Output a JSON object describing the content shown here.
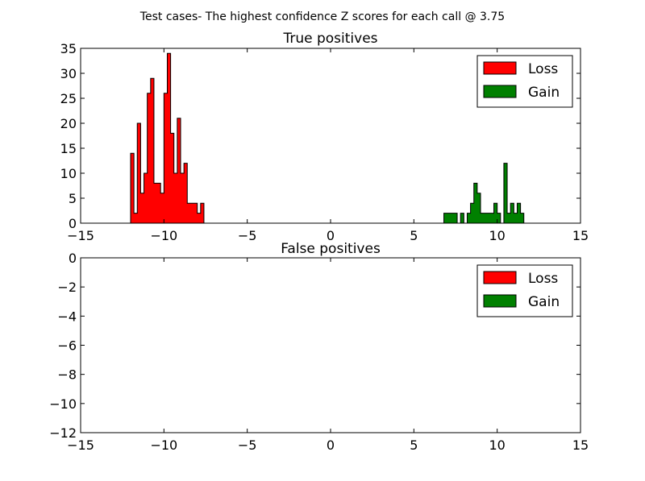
{
  "figure": {
    "suptitle": "Test cases- The highest confidence Z scores for each call @ 3.75"
  },
  "colors": {
    "loss": "#ff0000",
    "gain": "#008000",
    "axis": "#000000",
    "background": "#ffffff"
  },
  "chart_data": [
    {
      "type": "bar",
      "subtype": "step-filled-histogram",
      "title": "True positives",
      "xlim": [
        -15,
        15
      ],
      "ylim": [
        0,
        35
      ],
      "xticks": [
        -15,
        -10,
        -5,
        0,
        5,
        10,
        15
      ],
      "yticks": [
        0,
        5,
        10,
        15,
        20,
        25,
        30,
        35
      ],
      "xtick_labels": [
        "−15",
        "−10",
        "−5",
        "0",
        "5",
        "10",
        "15"
      ],
      "ytick_labels": [
        "0",
        "5",
        "10",
        "15",
        "20",
        "25",
        "30",
        "35"
      ],
      "grid": false,
      "legend_position": "top-right",
      "bin_width": 0.2,
      "series": [
        {
          "name": "Loss",
          "color": "#ff0000",
          "bin_start": -12.0,
          "counts": [
            14,
            2,
            20,
            6,
            10,
            26,
            29,
            8,
            8,
            6,
            26,
            34,
            18,
            10,
            21,
            10,
            12,
            4,
            4,
            4,
            2,
            4,
            0,
            0,
            0,
            0,
            0,
            0,
            0,
            0,
            0,
            0,
            0,
            0,
            0,
            0,
            0,
            0,
            0,
            0,
            0,
            0,
            0,
            0,
            0,
            0,
            0,
            0,
            0,
            0,
            0,
            0,
            0,
            0,
            0,
            0,
            0,
            0,
            0,
            0,
            0,
            0,
            0,
            0,
            0,
            0,
            0,
            0,
            0,
            0,
            0,
            0,
            0,
            0,
            0,
            0,
            0,
            0,
            0,
            0,
            0,
            0,
            0,
            0,
            0,
            0,
            0,
            0,
            0,
            0,
            0,
            0,
            0,
            0,
            0,
            0,
            0,
            0,
            0,
            0,
            0,
            0,
            0,
            0,
            0,
            0,
            0,
            0,
            0,
            0,
            0,
            0,
            0,
            0,
            0,
            0,
            0,
            0,
            0,
            0
          ]
        },
        {
          "name": "Gain",
          "color": "#008000",
          "bin_start": -6.6,
          "counts": [
            0,
            0,
            0,
            0,
            0,
            0,
            0,
            0,
            0,
            0,
            0,
            0,
            0,
            0,
            0,
            0,
            0,
            0,
            0,
            0,
            0,
            0,
            0,
            0,
            0,
            0,
            0,
            0,
            0,
            0,
            0,
            0,
            0,
            0,
            0,
            0,
            0,
            0,
            0,
            0,
            0,
            0,
            0,
            0,
            0,
            0,
            0,
            0,
            0,
            0,
            0,
            0,
            0,
            0,
            0,
            0,
            0,
            0,
            0,
            0,
            0,
            0,
            0,
            0,
            0,
            0,
            0,
            2,
            2,
            2,
            2,
            0,
            2,
            0,
            2,
            4,
            8,
            6,
            2,
            2,
            2,
            2,
            4,
            2,
            0,
            12,
            2,
            4,
            2,
            4,
            2
          ]
        }
      ]
    },
    {
      "type": "bar",
      "subtype": "step-filled-histogram",
      "title": "False positives",
      "xlim": [
        -15,
        15
      ],
      "ylim": [
        -12,
        0
      ],
      "xticks": [
        -15,
        -10,
        -5,
        0,
        5,
        10,
        15
      ],
      "yticks": [
        0,
        -2,
        -4,
        -6,
        -8,
        -10,
        -12
      ],
      "xtick_labels": [
        "−15",
        "−10",
        "−5",
        "0",
        "5",
        "10",
        "15"
      ],
      "ytick_labels": [
        "0",
        "−2",
        "−4",
        "−6",
        "−8",
        "−10",
        "−12"
      ],
      "grid": false,
      "legend_position": "top-right",
      "series": [
        {
          "name": "Loss",
          "color": "#ff0000",
          "counts": []
        },
        {
          "name": "Gain",
          "color": "#008000",
          "counts": []
        }
      ]
    }
  ]
}
